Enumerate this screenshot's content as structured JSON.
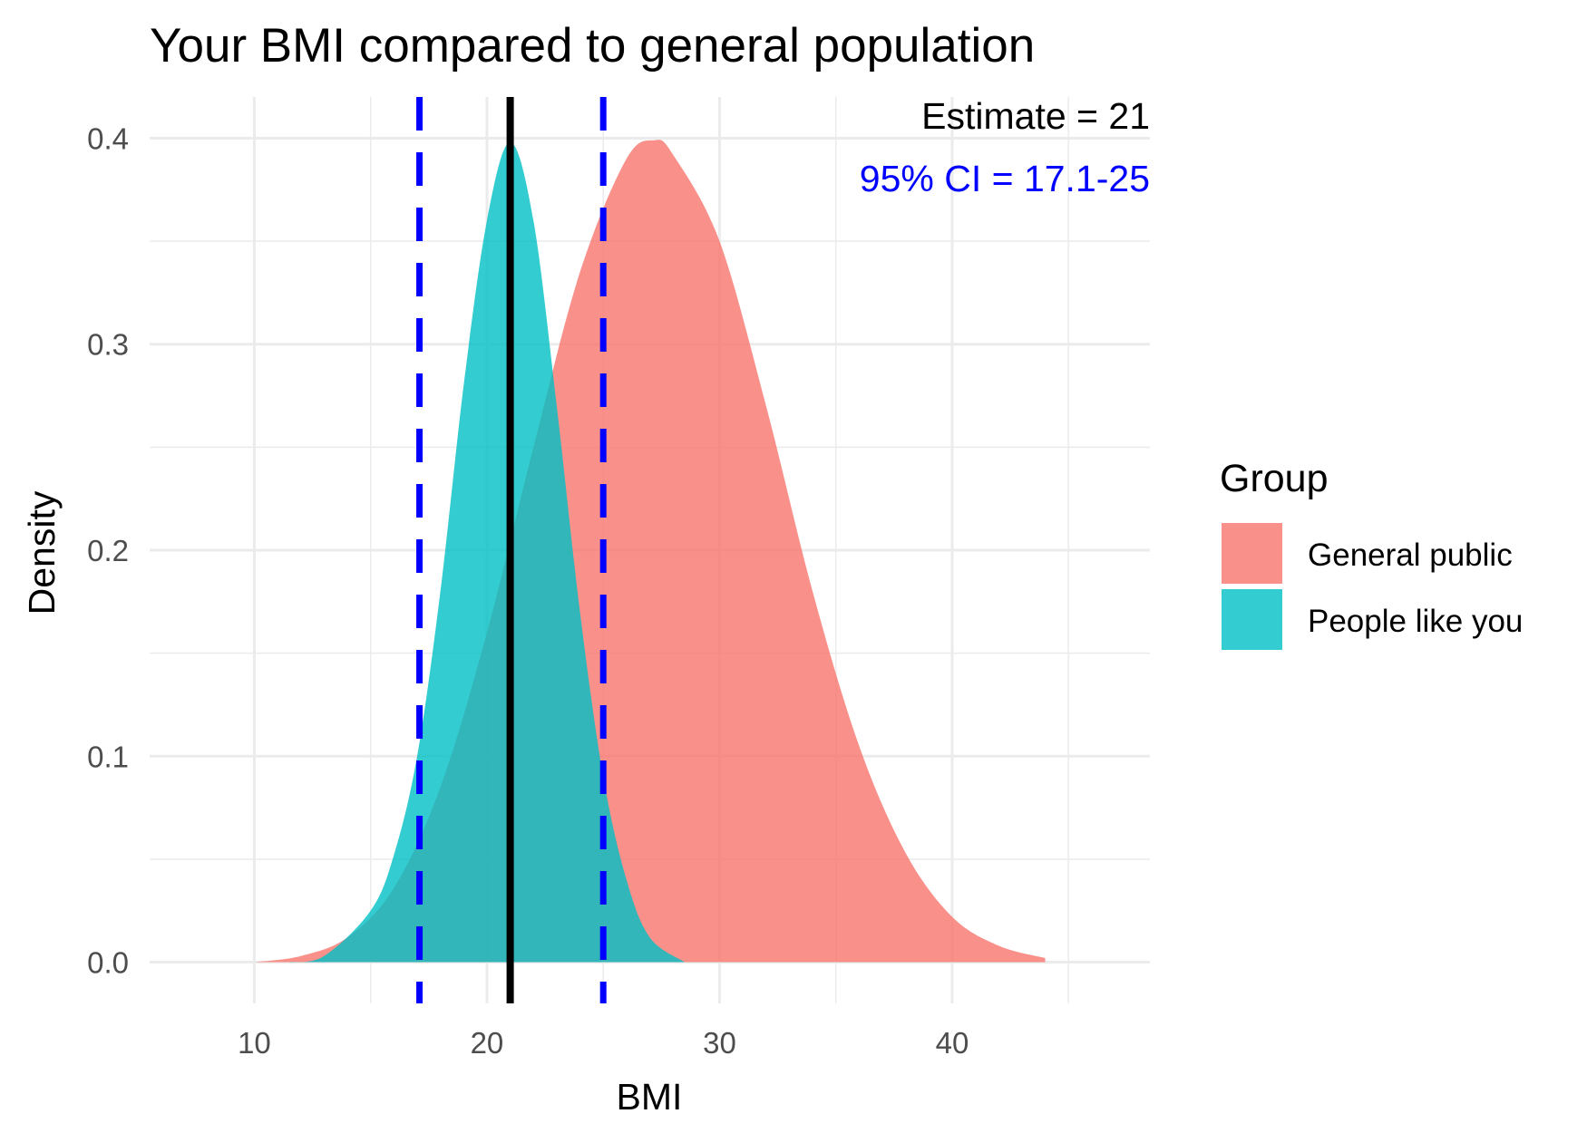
{
  "chart_data": {
    "type": "area",
    "title": "Your BMI compared to general population",
    "xlabel": "BMI",
    "ylabel": "Density",
    "xlim": [
      5.5,
      48.5
    ],
    "ylim": [
      -0.02,
      0.42
    ],
    "x_ticks": [
      10,
      20,
      30,
      40
    ],
    "x_tick_labels": [
      "10",
      "20",
      "30",
      "40"
    ],
    "y_ticks": [
      0.0,
      0.1,
      0.2,
      0.3,
      0.4
    ],
    "y_tick_labels": [
      "0.0",
      "0.1",
      "0.2",
      "0.3",
      "0.4"
    ],
    "grid": true,
    "legend": {
      "title": "Group",
      "position": "right",
      "entries": [
        "General public",
        "People like you"
      ]
    },
    "series": [
      {
        "name": "General public",
        "color": "#F8766D",
        "x": [
          10,
          12,
          14,
          16,
          18,
          20,
          22,
          24,
          26,
          27.2,
          28,
          30,
          32,
          34,
          36,
          38,
          40,
          42,
          44
        ],
        "values": [
          0.0,
          0.003,
          0.012,
          0.036,
          0.085,
          0.16,
          0.25,
          0.335,
          0.39,
          0.399,
          0.392,
          0.35,
          0.27,
          0.18,
          0.105,
          0.053,
          0.022,
          0.008,
          0.002
        ]
      },
      {
        "name": "People like you",
        "color": "#00BFC4",
        "x": [
          11.5,
          13,
          15,
          16,
          17,
          18,
          19,
          20,
          21,
          22,
          23,
          24,
          25,
          26,
          27,
          28.5
        ],
        "values": [
          0.0,
          0.003,
          0.025,
          0.052,
          0.1,
          0.18,
          0.28,
          0.36,
          0.398,
          0.36,
          0.27,
          0.17,
          0.09,
          0.04,
          0.012,
          0.0
        ]
      }
    ],
    "reference_lines": [
      {
        "kind": "estimate",
        "x": 21,
        "color": "#000000",
        "style": "solid"
      },
      {
        "kind": "ci_lower",
        "x": 17.1,
        "color": "#0000FF",
        "style": "dashed"
      },
      {
        "kind": "ci_upper",
        "x": 25,
        "color": "#0000FF",
        "style": "dashed"
      }
    ],
    "annotations": [
      {
        "text": "Estimate = 21",
        "color": "#000000"
      },
      {
        "text": "95% CI = 17.1-25",
        "color": "#0000FF"
      }
    ]
  }
}
